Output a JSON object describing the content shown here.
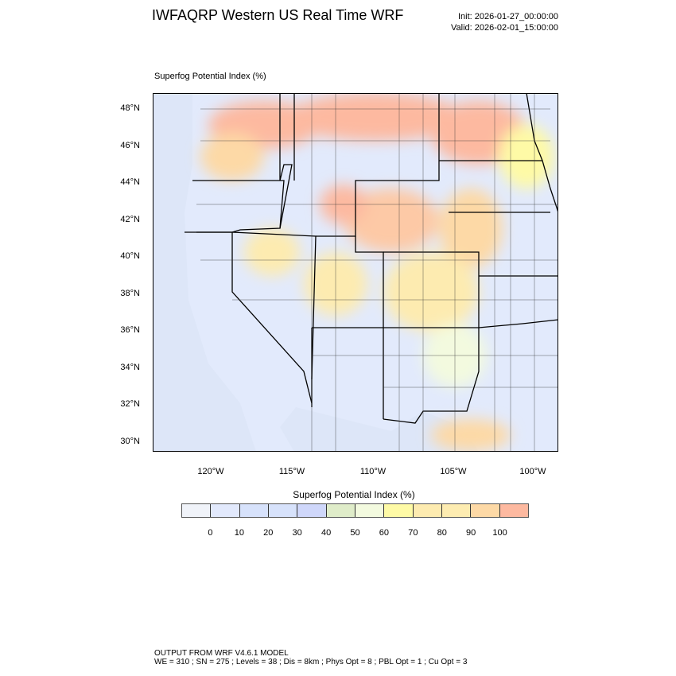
{
  "header": {
    "title": "IWFAQRP Western US Real Time WRF",
    "init": "Init: 2026-01-27_00:00:00",
    "valid": "Valid: 2026-02-01_15:00:00"
  },
  "map": {
    "subtitle": "Superfog Potential Index   (%)",
    "lat_labels": [
      "48°N",
      "46°N",
      "44°N",
      "42°N",
      "40°N",
      "38°N",
      "36°N",
      "34°N",
      "32°N",
      "30°N"
    ],
    "lon_labels": [
      "120°W",
      "115°W",
      "110°W",
      "105°W",
      "100°W"
    ],
    "land_color": "#e2eafc",
    "ocean_color": "#dde6f8"
  },
  "colorbar": {
    "title": "Superfog Potential Index  (%)",
    "labels": [
      "0",
      "10",
      "20",
      "30",
      "40",
      "50",
      "60",
      "70",
      "80",
      "90",
      "100"
    ],
    "colors": [
      "#f0f3f9",
      "#e2e9fc",
      "#d7e2fb",
      "#d7e2fb",
      "#cfd7fa",
      "#dfecc9",
      "#f3fadf",
      "#fefaa6",
      "#fdebb0",
      "#fdecb1",
      "#fdd9a6",
      "#fdb9a0"
    ]
  },
  "footer": {
    "line1": "OUTPUT FROM WRF V4.6.1 MODEL",
    "line2": "WE = 310 ; SN = 275 ; Levels = 38 ; Dis = 8km ; Phys Opt = 8 ; PBL Opt = 1 ; Cu Opt = 3"
  }
}
